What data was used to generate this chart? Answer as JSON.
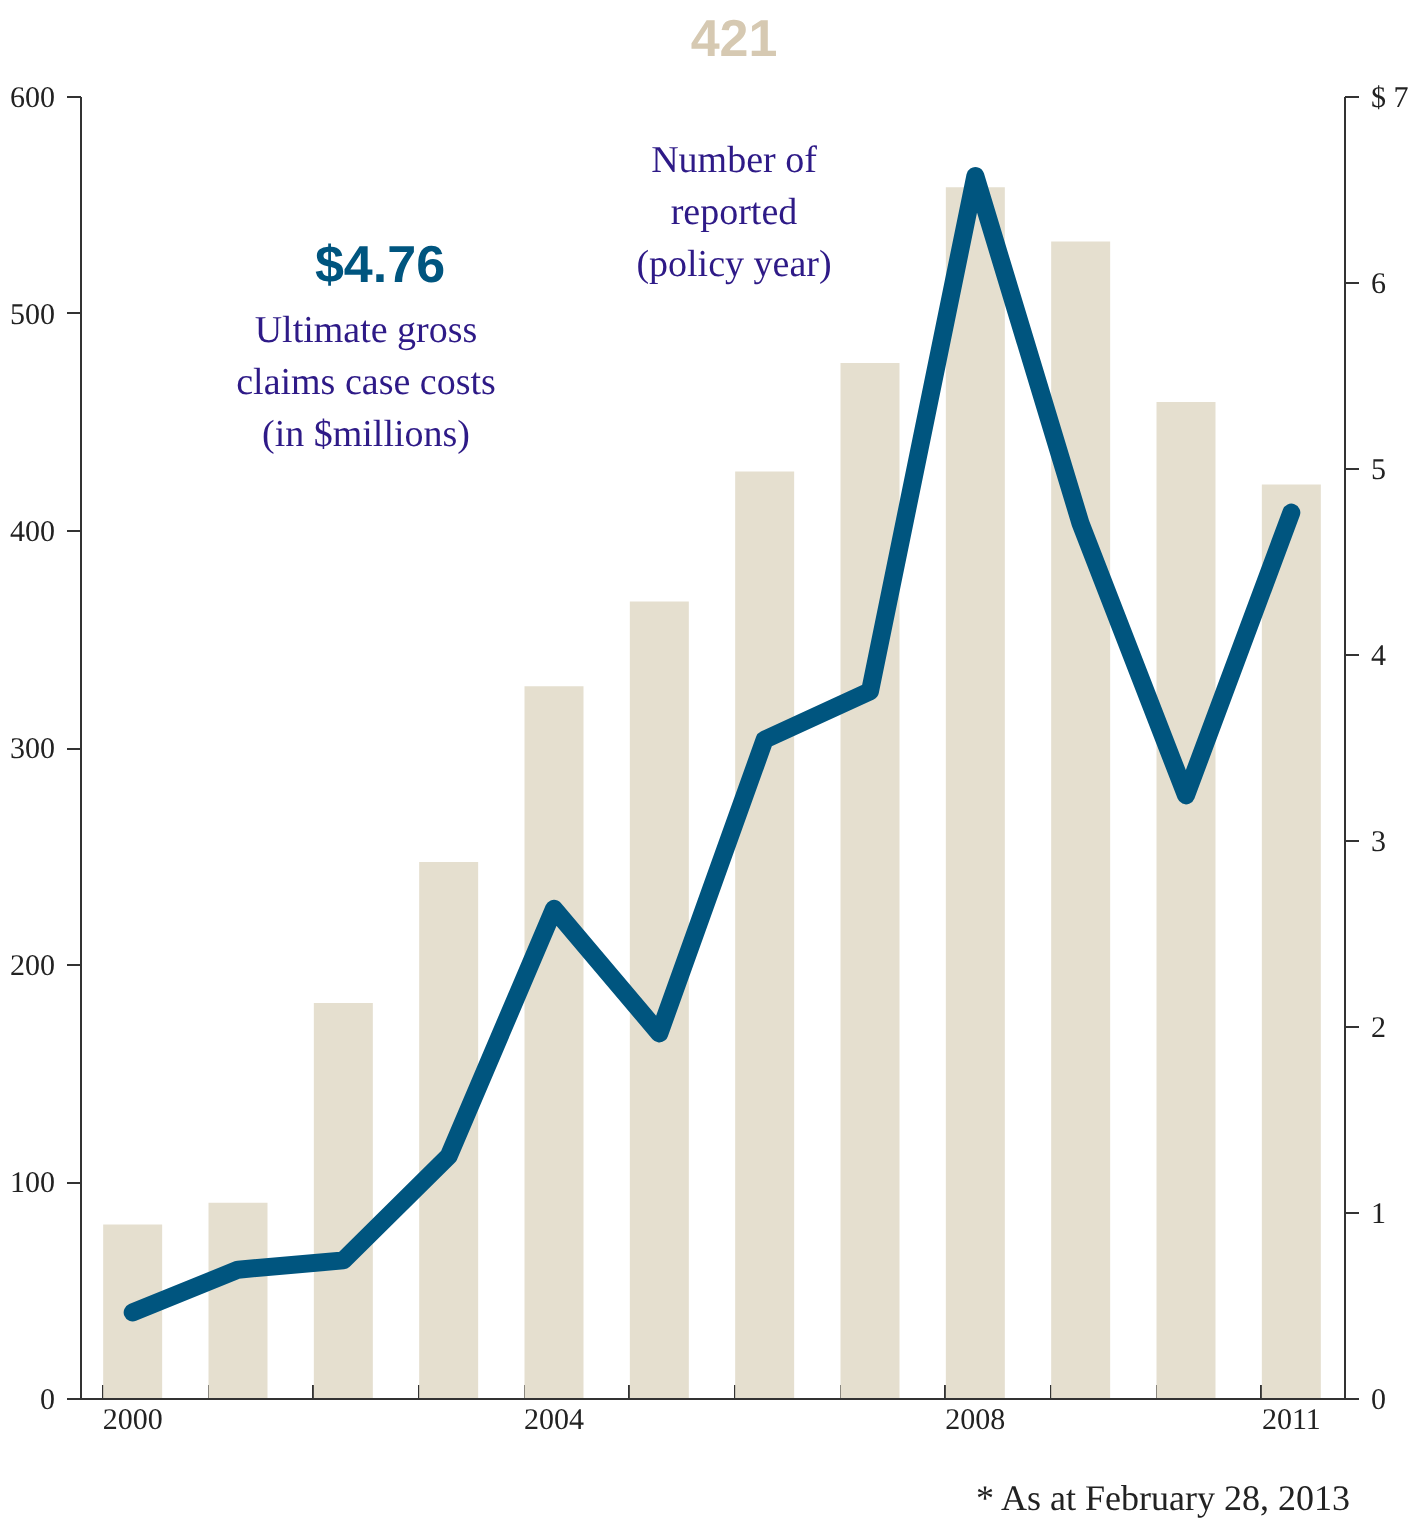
{
  "chart_data": {
    "type": "bar",
    "categories": [
      "2000",
      null,
      null,
      null,
      "2004",
      null,
      null,
      null,
      "2008",
      null,
      null,
      "2011"
    ],
    "series": [
      {
        "color": "#e5dfcf",
        "values": [
          80,
          90,
          182,
          247,
          328,
          367,
          427,
          477,
          558,
          533,
          459,
          421
        ]
      },
      {
        "type": "line",
        "axis": "y2",
        "color": "#00557f",
        "values": [
          0.46,
          0.69,
          0.74,
          1.3,
          2.63,
          1.96,
          3.54,
          3.8,
          6.57,
          4.7,
          3.24,
          4.76
        ]
      }
    ],
    "ylim": [
      0,
      600
    ],
    "yticks": [
      0,
      100,
      200,
      300,
      400,
      500,
      600
    ],
    "y2lim": [
      0,
      7
    ],
    "y2ticks": [
      0,
      1,
      2,
      3,
      4,
      5,
      6,
      {
        "value": 7,
        "label": "$ 7"
      }
    ],
    "annotations": [
      "421",
      "Number of\nreported\n(policy year)",
      "$4.76",
      "Ultimate gross\nclaims case costs\n(in $millions)",
      "* As at February 28, 2013"
    ]
  }
}
